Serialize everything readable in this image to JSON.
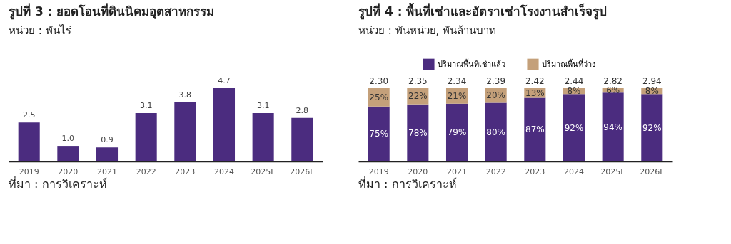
{
  "chart_data": [
    {
      "type": "bar",
      "title": "รูปที่ 3 : ยอดโอนที่ดินนิคมอุตสาหกรรม",
      "subtitle": "หน่วย : พันไร่",
      "categories": [
        "2019",
        "2020",
        "2021",
        "2022",
        "2023",
        "2024",
        "2025E",
        "2026F"
      ],
      "values": [
        2.5,
        1.0,
        0.9,
        3.1,
        3.8,
        4.7,
        3.1,
        2.8
      ],
      "value_labels": [
        "2.5",
        "1.0",
        "0.9",
        "3.1",
        "3.8",
        "4.7",
        "3.1",
        "2.8"
      ],
      "color": "#4b2c7f",
      "tick_labels": "x",
      "grid": false,
      "annotations": [
        "ที่มา : การวิเคราะห์"
      ]
    },
    {
      "type": "bar",
      "title": "รูปที่ 4 : พื้นที่เช่าและอัตราเช่าโรงงานสำเร็จรูป",
      "subtitle": "หน่วย : พันหน่วย, พันล้านบาท",
      "categories": [
        "2019",
        "2020",
        "2021",
        "2022",
        "2023",
        "2024",
        "2025E",
        "2026F"
      ],
      "stacked": true,
      "tick_labels": "x",
      "grid": false,
      "legend": "top",
      "series": [
        {
          "name": "ปริมาณพื้นที่เช่าแล้ว",
          "color": "#4b2c7f",
          "values": [
            75,
            78,
            79,
            80,
            87,
            92,
            94,
            92
          ],
          "value_labels": [
            "75%",
            "78%",
            "79%",
            "80%",
            "87%",
            "92%",
            "94%",
            "92%"
          ]
        },
        {
          "name": "ปริมาณพื้นที่ว่าง",
          "color": "#c4a07a",
          "values": [
            25,
            22,
            21,
            20,
            13,
            8,
            6,
            8
          ],
          "value_labels": [
            "25%",
            "22%",
            "21%",
            "20%",
            "13%",
            "8%",
            "6%",
            "8%"
          ]
        }
      ],
      "annotations": [
        "ที่มา : การวิเคราะห์",
        {
          "text": "2.30",
          "x": "2019",
          "y": 100
        },
        {
          "text": "2.35",
          "x": "2020",
          "y": 100
        },
        {
          "text": "2.34",
          "x": "2021",
          "y": 100
        },
        {
          "text": "2.39",
          "x": "2022",
          "y": 100
        },
        {
          "text": "2.42",
          "x": "2023",
          "y": 100
        },
        {
          "text": "2.44",
          "x": "2024",
          "y": 100
        },
        {
          "text": "2.82",
          "x": "2025E",
          "y": 100
        },
        {
          "text": "2.94",
          "x": "2026F",
          "y": 100
        }
      ]
    }
  ]
}
